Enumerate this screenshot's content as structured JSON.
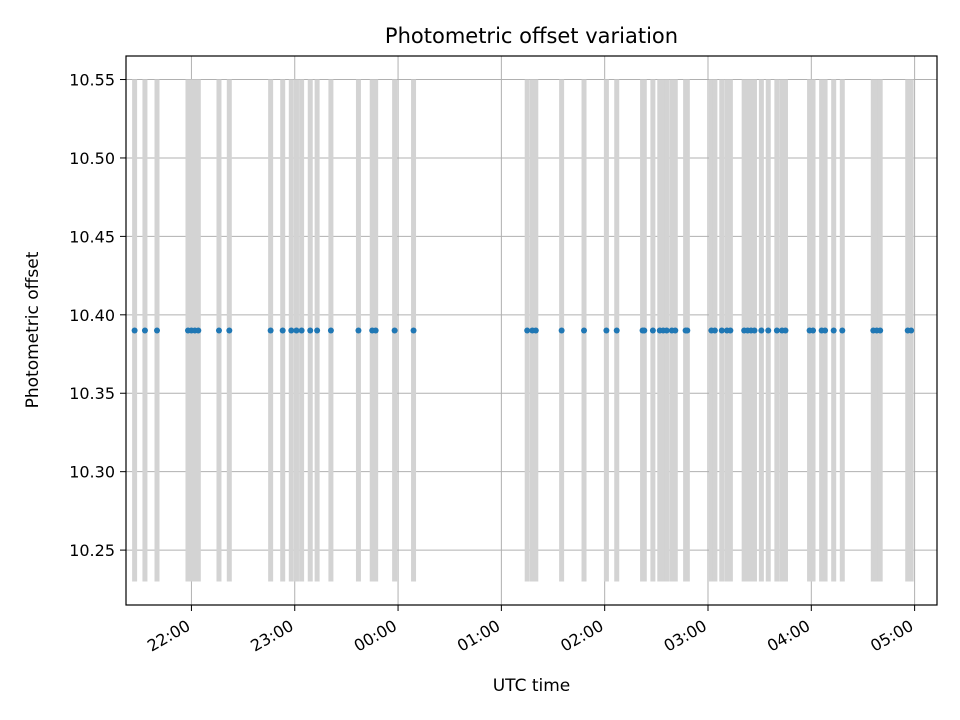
{
  "chart_data": {
    "type": "scatter",
    "title": "Photometric offset variation",
    "xlabel": "UTC time",
    "ylabel": "Photometric offset",
    "xlim": [
      "21:22",
      "05:13"
    ],
    "ylim": [
      10.215,
      10.565
    ],
    "yticks": [
      "10.25",
      "10.30",
      "10.35",
      "10.40",
      "10.45",
      "10.50",
      "10.55"
    ],
    "xticks": [
      "22:00",
      "23:00",
      "00:00",
      "01:00",
      "02:00",
      "03:00",
      "04:00",
      "05:00"
    ],
    "grid": true,
    "colors": {
      "points": "#1f77b4",
      "bars": "#d3d3d3",
      "grid": "#b0b0b0"
    },
    "bars_range": [
      10.23,
      10.55
    ],
    "series": [
      {
        "y": 10.39,
        "x": [
          "21:27",
          "21:33",
          "21:40",
          "21:58",
          "22:00",
          "22:02",
          "22:04",
          "22:16",
          "22:22",
          "22:46",
          "22:53",
          "22:58",
          "23:01",
          "23:04",
          "23:09",
          "23:13",
          "23:21",
          "23:37",
          "23:45",
          "23:47",
          "23:58",
          "00:09",
          "01:15",
          "01:18",
          "01:20",
          "01:35",
          "01:48",
          "02:01",
          "02:07",
          "02:22",
          "02:23",
          "02:28",
          "02:32",
          "02:34",
          "02:36",
          "02:39",
          "02:41",
          "02:47",
          "02:48",
          "03:02",
          "03:04",
          "03:08",
          "03:11",
          "03:13",
          "03:21",
          "03:23",
          "03:25",
          "03:27",
          "03:31",
          "03:35",
          "03:40",
          "03:43",
          "03:45",
          "03:59",
          "04:01",
          "04:06",
          "04:08",
          "04:13",
          "04:18",
          "04:36",
          "04:38",
          "04:40",
          "04:56",
          "04:58"
        ]
      }
    ]
  }
}
